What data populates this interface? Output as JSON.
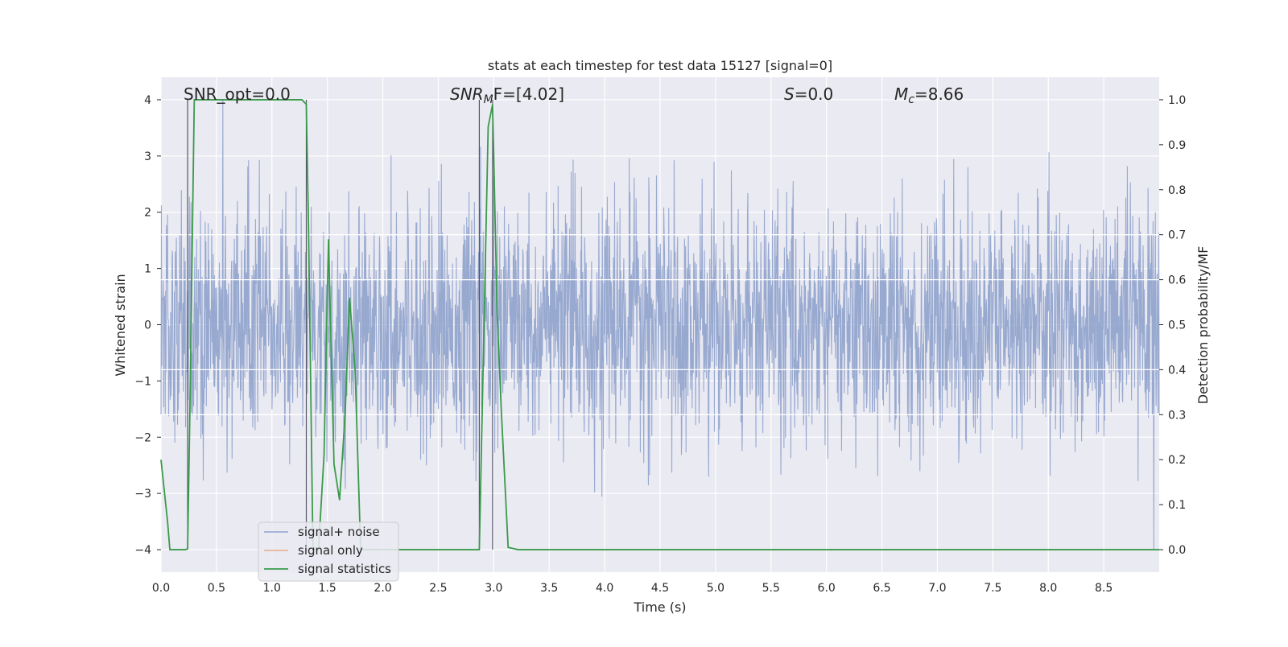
{
  "chart_data": {
    "type": "line",
    "title": "stats at each timestep for test data 15127 [signal=0]",
    "xlabel": "Time (s)",
    "ylabel": "Whitened strain",
    "ylabel_right": "Detection probability/MF",
    "xlim": [
      0.0,
      9.0
    ],
    "ylim": [
      -4.4,
      4.4
    ],
    "ylim_right": [
      -0.05,
      1.05
    ],
    "x_ticks": [
      "0.0",
      "0.5",
      "1.0",
      "1.5",
      "2.0",
      "2.5",
      "3.0",
      "3.5",
      "4.0",
      "4.5",
      "5.0",
      "5.5",
      "6.0",
      "6.5",
      "7.0",
      "7.5",
      "8.0",
      "8.5"
    ],
    "y_ticks": [
      "4",
      "3",
      "2",
      "1",
      "0",
      "−1",
      "−2",
      "−3",
      "−4"
    ],
    "y_right_ticks": [
      "1.0",
      "0.9",
      "0.8",
      "0.7",
      "0.6",
      "0.5",
      "0.4",
      "0.3",
      "0.2",
      "0.1",
      "0.0"
    ],
    "annotations": {
      "snr_opt": "SNR_opt=0.0",
      "snr_mf_main": "SNR",
      "snr_mf_sub": "M",
      "snr_mf_rest": "F=[4.02]",
      "s_label": "S",
      "s_value": "=0.0",
      "mc_main": "M",
      "mc_sub": "c",
      "mc_value": "=8.66"
    },
    "legend": [
      "signal+ noise",
      "signal only",
      "signal statistics"
    ],
    "legend_position": "lower-left",
    "series": [
      {
        "name": "signal+ noise",
        "color": "#8fa2cc",
        "description": "whitened strain noise, ~N(0,1)"
      },
      {
        "name": "signal only",
        "color": "#e8a98a",
        "values": []
      },
      {
        "name": "signal statistics",
        "color": "#3a9a4a",
        "x": [
          0.0,
          0.06,
          0.08,
          0.15,
          0.22,
          0.24,
          0.26,
          0.3,
          0.35,
          0.5,
          0.8,
          1.0,
          1.2,
          1.27,
          1.31,
          1.33,
          1.37,
          1.42,
          1.47,
          1.51,
          1.56,
          1.61,
          1.66,
          1.7,
          1.75,
          1.8,
          1.85,
          2.0,
          2.6,
          2.87,
          2.95,
          2.99,
          3.03,
          3.07,
          3.13,
          3.22,
          9.0
        ],
        "values": [
          0.2,
          0.06,
          0.0,
          0.0,
          0.0,
          0.002,
          0.3,
          1.0,
          1.0,
          1.0,
          1.0,
          1.0,
          1.0,
          1.0,
          0.99,
          0.72,
          0.0,
          0.0,
          0.21,
          0.69,
          0.19,
          0.11,
          0.3,
          0.56,
          0.4,
          0.0,
          0.0,
          0.0,
          0.0,
          0.0,
          0.94,
          0.99,
          0.53,
          0.3,
          0.005,
          0.0,
          0.0
        ]
      }
    ],
    "vertical_lines_x": [
      0.24,
      1.31,
      2.87,
      2.99
    ],
    "horizontal_lines_y_right": [
      0.7,
      0.6,
      0.4,
      0.3
    ],
    "grid": true
  }
}
